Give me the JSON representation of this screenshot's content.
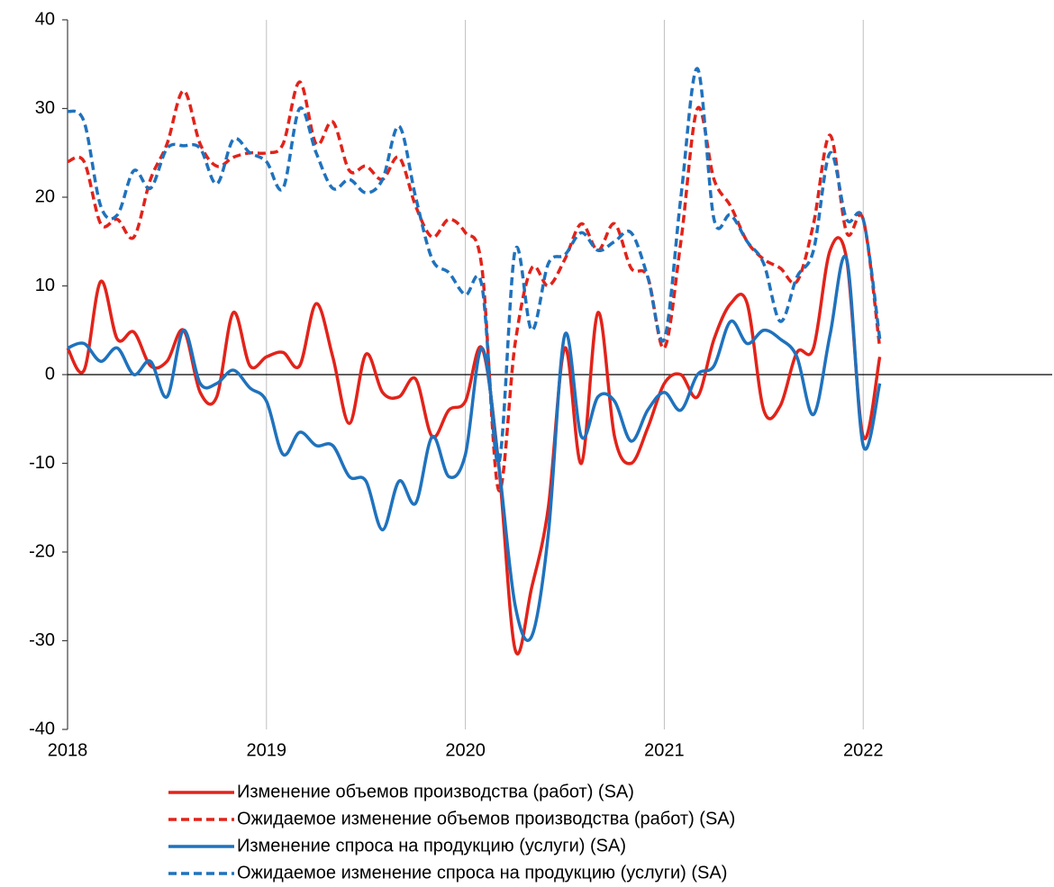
{
  "chart_data": {
    "type": "line",
    "x": [
      2018,
      2018.0833,
      2018.1667,
      2018.25,
      2018.3333,
      2018.4167,
      2018.5,
      2018.5833,
      2018.6667,
      2018.75,
      2018.8333,
      2018.9167,
      2019,
      2019.0833,
      2019.1667,
      2019.25,
      2019.3333,
      2019.4167,
      2019.5,
      2019.5833,
      2019.6667,
      2019.75,
      2019.8333,
      2019.9167,
      2020,
      2020.0833,
      2020.1667,
      2020.25,
      2020.3333,
      2020.4167,
      2020.5,
      2020.5833,
      2020.6667,
      2020.75,
      2020.8333,
      2020.9167,
      2021,
      2021.0833,
      2021.1667,
      2021.25,
      2021.3333,
      2021.4167,
      2021.5,
      2021.5833,
      2021.6667,
      2021.75,
      2021.8333,
      2021.9167,
      2022,
      2022.0833
    ],
    "series": [
      {
        "name": "Изменение объемов производства (работ) (SA)",
        "color": "#e2231a",
        "dash": false,
        "values": [
          3,
          0.5,
          10.5,
          4,
          4.8,
          1,
          1.5,
          5,
          -2,
          -2.5,
          7,
          1,
          2,
          2.5,
          1,
          8,
          2,
          -5.5,
          2.3,
          -2,
          -2.5,
          -0.5,
          -7,
          -4,
          -3,
          3,
          -10,
          -31,
          -24,
          -15,
          3,
          -10,
          7,
          -7,
          -10,
          -6,
          -1,
          0,
          -2.5,
          4,
          8,
          8,
          -4,
          -3.5,
          2.5,
          3,
          14,
          13,
          -7,
          2
        ]
      },
      {
        "name": "Ожидаемое изменение объемов производства (работ) (SA)",
        "color": "#e2231a",
        "dash": true,
        "values": [
          24,
          24,
          17,
          17.5,
          15.5,
          22,
          26,
          32,
          26,
          23.5,
          24.5,
          25,
          25,
          26,
          33,
          26,
          28.5,
          23,
          23.5,
          22,
          24.5,
          19,
          15.5,
          17.5,
          16,
          12,
          -13,
          3.5,
          12,
          10,
          13,
          17,
          14,
          17,
          12,
          11,
          3,
          15,
          30,
          22,
          19,
          15,
          13,
          12,
          10.5,
          17,
          27,
          16,
          17.5,
          3
        ]
      },
      {
        "name": "Изменение спроса на продукцию (услуги) (SA)",
        "color": "#1f72bd",
        "dash": false,
        "values": [
          3,
          3.5,
          1.5,
          3,
          0,
          1.5,
          -2.5,
          5,
          -1,
          -1,
          0.5,
          -1.5,
          -3,
          -9,
          -6.5,
          -8,
          -8,
          -11.5,
          -12,
          -17.5,
          -12,
          -14.5,
          -7,
          -11.5,
          -9,
          3,
          -10,
          -26,
          -29.5,
          -18,
          4.5,
          -7,
          -2.5,
          -3,
          -7.5,
          -4,
          -2,
          -4,
          0,
          1,
          6,
          3.5,
          5,
          4,
          2,
          -4.5,
          4.5,
          13,
          -8,
          -1
        ]
      },
      {
        "name": "Ожидаемое изменение спроса на продукцию (услуги) (SA)",
        "color": "#1f72bd",
        "dash": true,
        "values": [
          29.7,
          28.5,
          19,
          18,
          23,
          21,
          25.5,
          25.8,
          25.5,
          21.5,
          26.5,
          25,
          24,
          21,
          30,
          25,
          21,
          22,
          20.5,
          22,
          28,
          20,
          13,
          11.5,
          9,
          10,
          -10,
          14,
          5,
          12.5,
          13.5,
          16,
          14,
          15,
          16,
          11,
          4,
          20,
          34.5,
          17.5,
          18,
          15,
          12.5,
          6,
          11,
          14,
          25,
          17.5,
          17.5,
          4
        ]
      }
    ],
    "xlim": [
      2018,
      2022.95
    ],
    "xticks": [
      2018,
      2019,
      2020,
      2021,
      2022
    ],
    "ylim": [
      -40,
      40
    ],
    "yticks": [
      -40,
      -30,
      -20,
      -10,
      0,
      10,
      20,
      30,
      40
    ],
    "grid": "x"
  }
}
